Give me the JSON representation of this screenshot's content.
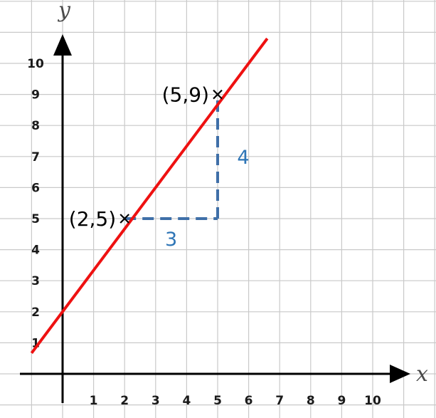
{
  "chart_data": {
    "type": "line",
    "xlabel": "x",
    "ylabel": "y",
    "xlim": [
      0,
      10
    ],
    "ylim": [
      0,
      10
    ],
    "x_ticks": [
      "1",
      "2",
      "3",
      "4",
      "5",
      "6",
      "7",
      "8",
      "9",
      "10"
    ],
    "y_ticks": [
      "1",
      "2",
      "3",
      "4",
      "5",
      "6",
      "7",
      "8",
      "9",
      "10"
    ],
    "grid": true,
    "series": [
      {
        "x": [
          -1,
          6.6
        ],
        "y": [
          0.67,
          10.8
        ],
        "color": "#ee1111"
      }
    ],
    "points": [
      {
        "x": 2,
        "y": 5,
        "label": "(2,5)"
      },
      {
        "x": 5,
        "y": 9,
        "label": "(5,9)"
      }
    ],
    "slope_triangle": {
      "run": {
        "from": [
          2,
          5
        ],
        "to": [
          5,
          5
        ],
        "label": "3"
      },
      "rise": {
        "from": [
          5,
          5
        ],
        "to": [
          5,
          9
        ],
        "label": "4"
      },
      "color": "#3f6fa8",
      "label_color": "#2e75b6"
    }
  }
}
